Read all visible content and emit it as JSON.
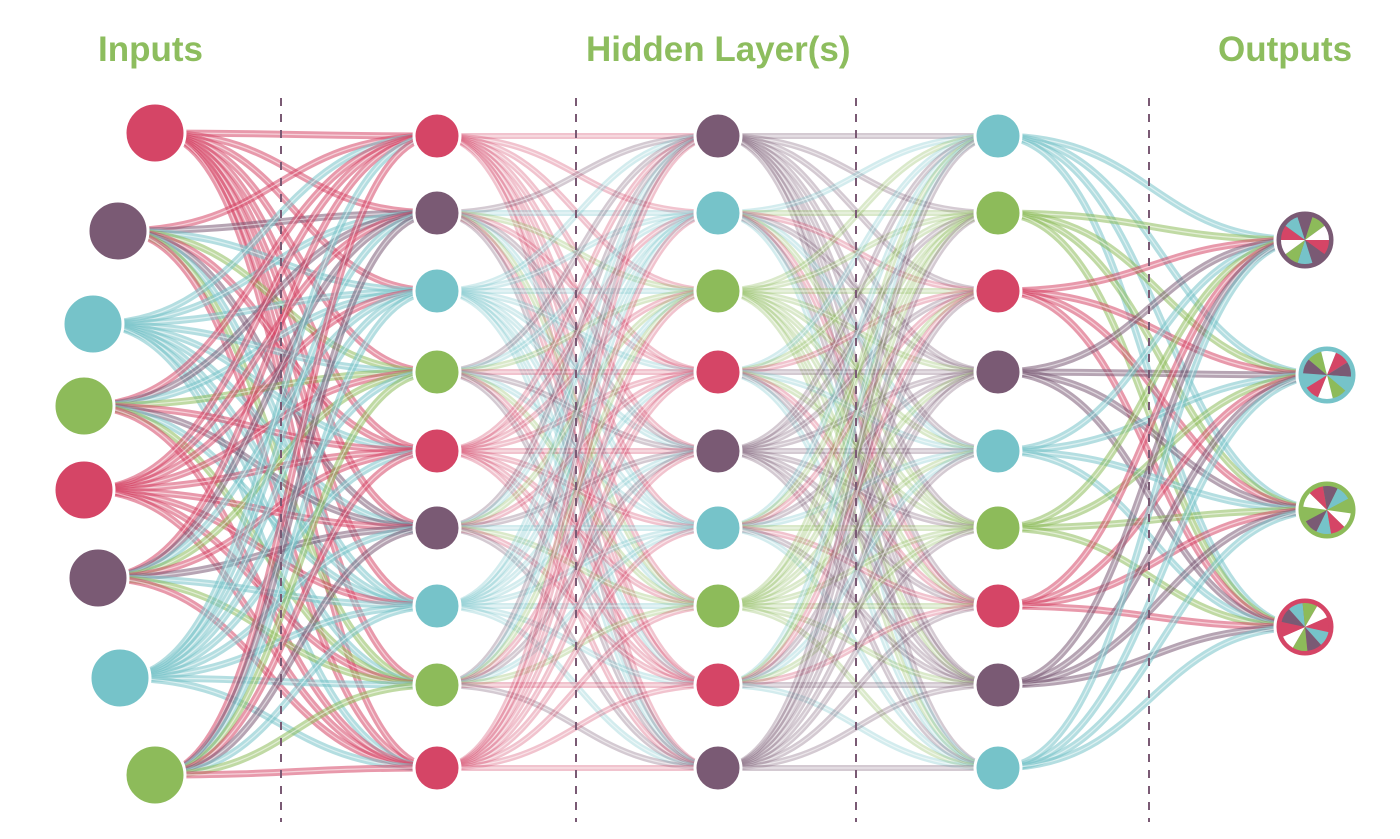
{
  "headings": {
    "inputs": "Inputs",
    "hidden": "Hidden Layer(s)",
    "outputs": "Outputs"
  },
  "colors": {
    "heading": "#8dbd5e",
    "crimson": "#d54566",
    "plum": "#7a5a74",
    "teal": "#76c3c9",
    "green": "#8dbb5a",
    "divider": "#7a5a74",
    "background": "#ffffff"
  },
  "network": {
    "layers": [
      {
        "name": "input-layer",
        "kind": "input",
        "colors": [
          "crimson",
          "plum",
          "teal",
          "green",
          "crimson",
          "plum",
          "teal",
          "green"
        ]
      },
      {
        "name": "hidden-layer-1",
        "kind": "hidden",
        "colors": [
          "crimson",
          "plum",
          "teal",
          "green",
          "crimson",
          "plum",
          "teal",
          "green",
          "crimson"
        ]
      },
      {
        "name": "hidden-layer-2",
        "kind": "hidden",
        "colors": [
          "plum",
          "teal",
          "green",
          "crimson",
          "plum",
          "teal",
          "green",
          "crimson",
          "plum"
        ]
      },
      {
        "name": "hidden-layer-3",
        "kind": "hidden",
        "colors": [
          "teal",
          "green",
          "crimson",
          "plum",
          "teal",
          "green",
          "crimson",
          "plum",
          "teal"
        ]
      },
      {
        "name": "output-layer",
        "kind": "output",
        "colors": [
          "plum",
          "teal",
          "green",
          "crimson"
        ]
      }
    ],
    "dividers": 4
  }
}
